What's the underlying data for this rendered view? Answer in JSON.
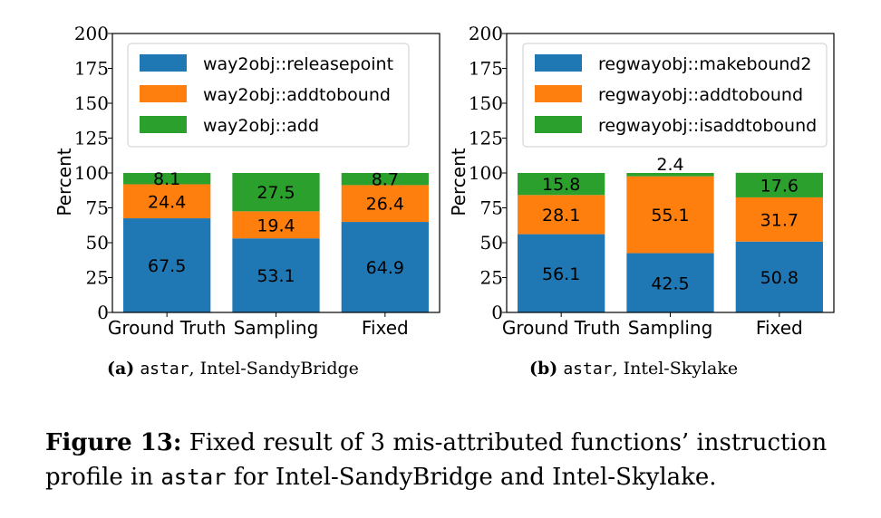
{
  "figure": {
    "subcaption_a": {
      "label": "(a)",
      "code": "astar",
      "text": ", Intel-SandyBridge"
    },
    "subcaption_b": {
      "label": "(b)",
      "code": "astar",
      "text": ", Intel-Skylake"
    },
    "caption": {
      "label": "Figure 13:",
      "text_1": " Fixed result of 3 mis-attributed functions’ instruction profile in ",
      "code": "astar",
      "text_2": " for Intel-SandyBridge and Intel-Skylake."
    }
  },
  "colors": {
    "blue": "#1f77b4",
    "orange": "#ff7f0e",
    "green": "#2ca02c"
  },
  "chart_data": [
    {
      "type": "bar",
      "stacked": true,
      "title": "",
      "xlabel": "",
      "ylabel": "Percent",
      "ylim": [
        0,
        200
      ],
      "yticks": [
        "0",
        "25",
        "50",
        "75",
        "100",
        "125",
        "150",
        "175",
        "200"
      ],
      "categories": [
        "Ground Truth",
        "Sampling",
        "Fixed"
      ],
      "legend_position": "top-left",
      "series": [
        {
          "name": "way2obj::releasepoint",
          "values": [
            67.5,
            53.1,
            64.9
          ],
          "labels": [
            "67.5",
            "53.1",
            "64.9"
          ]
        },
        {
          "name": "way2obj::addtobound",
          "values": [
            24.4,
            19.4,
            26.4
          ],
          "labels": [
            "24.4",
            "19.4",
            "26.4"
          ]
        },
        {
          "name": "way2obj::add",
          "values": [
            8.1,
            27.5,
            8.7
          ],
          "labels": [
            "8.1",
            "27.5",
            "8.7"
          ]
        }
      ]
    },
    {
      "type": "bar",
      "stacked": true,
      "title": "",
      "xlabel": "",
      "ylabel": "Percent",
      "ylim": [
        0,
        200
      ],
      "yticks": [
        "0",
        "25",
        "50",
        "75",
        "100",
        "125",
        "150",
        "175",
        "200"
      ],
      "categories": [
        "Ground Truth",
        "Sampling",
        "Fixed"
      ],
      "legend_position": "top",
      "series": [
        {
          "name": "regwayobj::makebound2",
          "values": [
            56.1,
            42.5,
            50.8
          ],
          "labels": [
            "56.1",
            "42.5",
            "50.8"
          ]
        },
        {
          "name": "regwayobj::addtobound",
          "values": [
            28.1,
            55.1,
            31.7
          ],
          "labels": [
            "28.1",
            "55.1",
            "31.7"
          ]
        },
        {
          "name": "regwayobj::isaddtobound",
          "values": [
            15.8,
            2.4,
            17.6
          ],
          "labels": [
            "15.8",
            "2.4",
            "17.6"
          ]
        }
      ]
    }
  ]
}
